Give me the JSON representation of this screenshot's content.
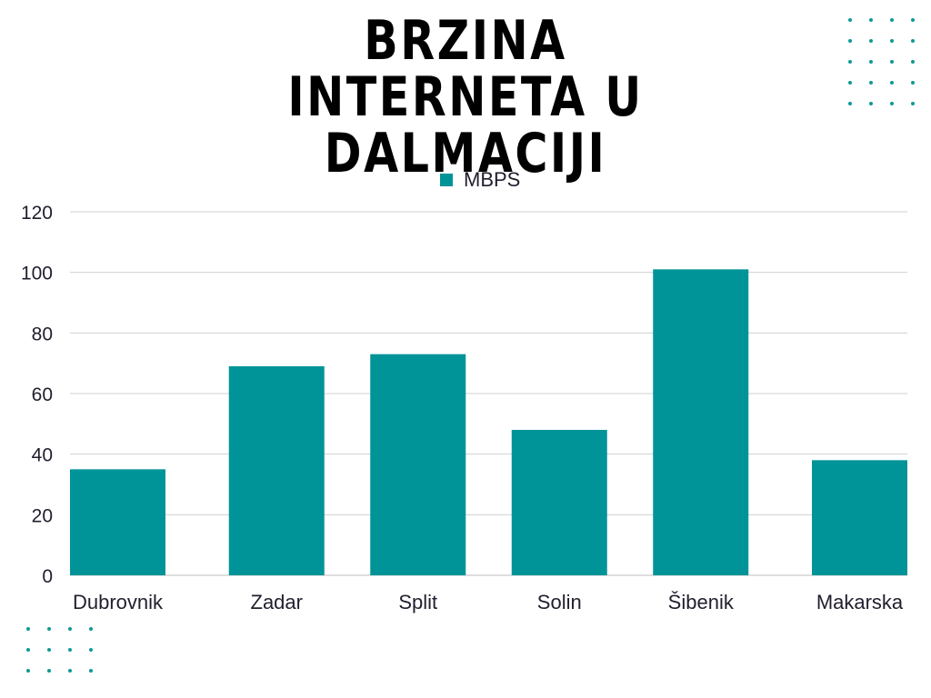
{
  "colors": {
    "bar": "#009498",
    "grid": "#d0d0d0",
    "text": "#1f1f2e",
    "title": "#000000",
    "dots": "#0f9a96"
  },
  "chart_data": {
    "type": "bar",
    "title_lines": [
      "BRZINA INTERNETA U",
      "DALMACIJI"
    ],
    "categories": [
      "Dubrovnik",
      "Zadar",
      "Split",
      "Solin",
      "Šibenik",
      "Makarska"
    ],
    "series": [
      {
        "name": "MBPS",
        "values": [
          35,
          69,
          73,
          48,
          101,
          38
        ]
      }
    ],
    "yticks": [
      "0",
      "20",
      "40",
      "60",
      "80",
      "100",
      "120"
    ],
    "ylim": [
      0,
      120
    ],
    "grid": true,
    "legend_position": "top-center"
  }
}
